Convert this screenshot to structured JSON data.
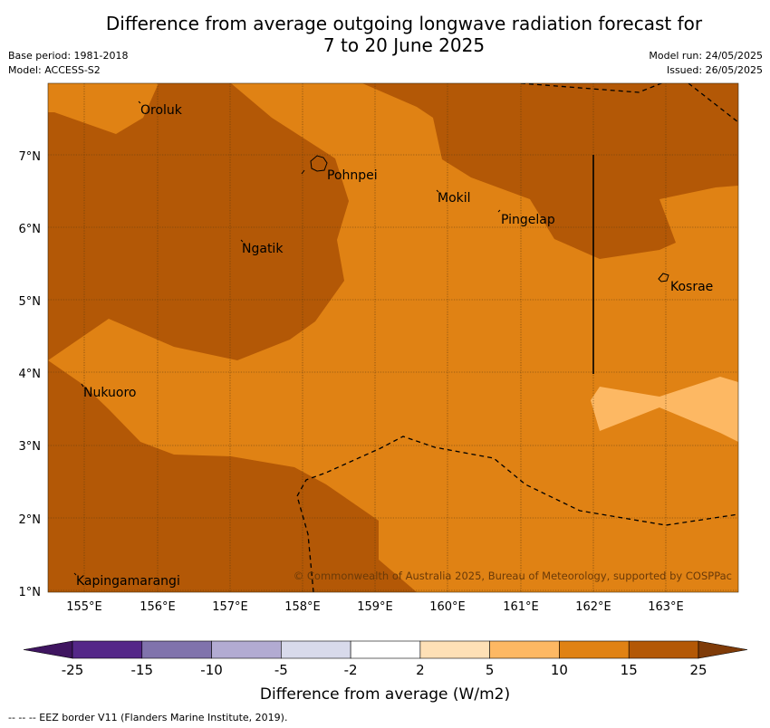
{
  "title_line1": "Difference from average outgoing longwave radiation forecast for",
  "title_line2": "7 to 20 June 2025",
  "meta": {
    "base_period": "Base period: 1981-2018",
    "model": "Model: ACCESS-S2",
    "model_run": "Model run: 24/05/2025",
    "issued": "Issued: 26/05/2025"
  },
  "map": {
    "lon_ticks": [
      "155°E",
      "156°E",
      "157°E",
      "158°E",
      "159°E",
      "160°E",
      "161°E",
      "162°E",
      "163°E"
    ],
    "lat_ticks": [
      "7°N",
      "6°N",
      "5°N",
      "4°N",
      "3°N",
      "2°N",
      "1°N"
    ],
    "places": [
      {
        "name": "Oroluk"
      },
      {
        "name": "Pohnpei"
      },
      {
        "name": "Mokil"
      },
      {
        "name": "Pingelap"
      },
      {
        "name": "Ngatik"
      },
      {
        "name": "Kosrae"
      },
      {
        "name": "Nukuoro"
      },
      {
        "name": "Kapingamarangi"
      }
    ],
    "copyright": "© Commonwealth of Australia 2025, Bureau of Meteorology, supported by COSPPac"
  },
  "colorbar": {
    "label": "Difference from average (W/m2)",
    "ticks": [
      "-25",
      "-15",
      "-10",
      "-5",
      "-2",
      "2",
      "5",
      "10",
      "15",
      "25"
    ],
    "colors": [
      "#3f1560",
      "#542788",
      "#8073ac",
      "#b2abd2",
      "#d8daeb",
      "#ffffff",
      "#fee0b6",
      "#fdb863",
      "#e08214",
      "#b35806",
      "#7f3b08"
    ]
  },
  "footnote": "--  --  -- EEZ border V11 (Flanders Marine Institute, 2019)."
}
